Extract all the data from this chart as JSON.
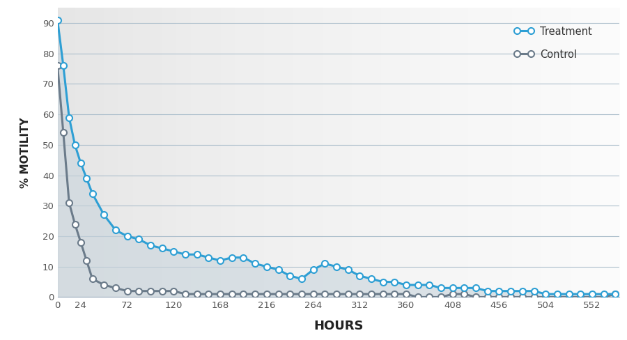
{
  "treatment_x": [
    0,
    6,
    12,
    18,
    24,
    30,
    36,
    48,
    60,
    72,
    84,
    96,
    108,
    120,
    132,
    144,
    156,
    168,
    180,
    192,
    204,
    216,
    228,
    240,
    252,
    264,
    276,
    288,
    300,
    312,
    324,
    336,
    348,
    360,
    372,
    384,
    396,
    408,
    420,
    432,
    444,
    456,
    468,
    480,
    492,
    504,
    516,
    528,
    540,
    552,
    564,
    576
  ],
  "treatment_y": [
    91,
    76,
    59,
    50,
    44,
    39,
    34,
    27,
    22,
    20,
    19,
    17,
    16,
    15,
    14,
    14,
    13,
    12,
    13,
    13,
    11,
    10,
    9,
    7,
    6,
    9,
    11,
    10,
    9,
    7,
    6,
    5,
    5,
    4,
    4,
    4,
    3,
    3,
    3,
    3,
    2,
    2,
    2,
    2,
    2,
    1,
    1,
    1,
    1,
    1,
    1,
    1
  ],
  "control_x": [
    0,
    6,
    12,
    18,
    24,
    30,
    36,
    48,
    60,
    72,
    84,
    96,
    108,
    120,
    132,
    144,
    156,
    168,
    180,
    192,
    204,
    216,
    228,
    240,
    252,
    264,
    276,
    288,
    300,
    312,
    324,
    336,
    348,
    360,
    372,
    384,
    396,
    408,
    420,
    432,
    444,
    456,
    468,
    480,
    492,
    504,
    516,
    528,
    540,
    552,
    564,
    576
  ],
  "control_y": [
    76,
    54,
    31,
    24,
    18,
    12,
    6,
    4,
    3,
    2,
    2,
    2,
    2,
    2,
    1,
    1,
    1,
    1,
    1,
    1,
    1,
    1,
    1,
    1,
    1,
    1,
    1,
    1,
    1,
    1,
    1,
    1,
    1,
    1,
    0,
    0,
    0,
    1,
    1,
    0,
    0,
    0,
    0,
    0,
    0,
    0,
    0,
    0,
    0,
    0,
    0,
    1
  ],
  "treatment_color": "#2e9fd4",
  "control_color": "#6b7b8a",
  "marker_face_color": "#ffffff",
  "xlabel": "HOURS",
  "ylabel": "% MOTILITY",
  "xlim": [
    0,
    580
  ],
  "ylim": [
    0,
    95
  ],
  "xticks": [
    0,
    24,
    72,
    120,
    168,
    216,
    264,
    312,
    360,
    408,
    456,
    504,
    552
  ],
  "yticks": [
    0,
    10,
    20,
    30,
    40,
    50,
    60,
    70,
    80,
    90
  ],
  "legend_treatment": "Treatment",
  "legend_control": "Control",
  "line_width": 2.2,
  "marker_size": 6.5,
  "marker_edge_width": 1.5
}
